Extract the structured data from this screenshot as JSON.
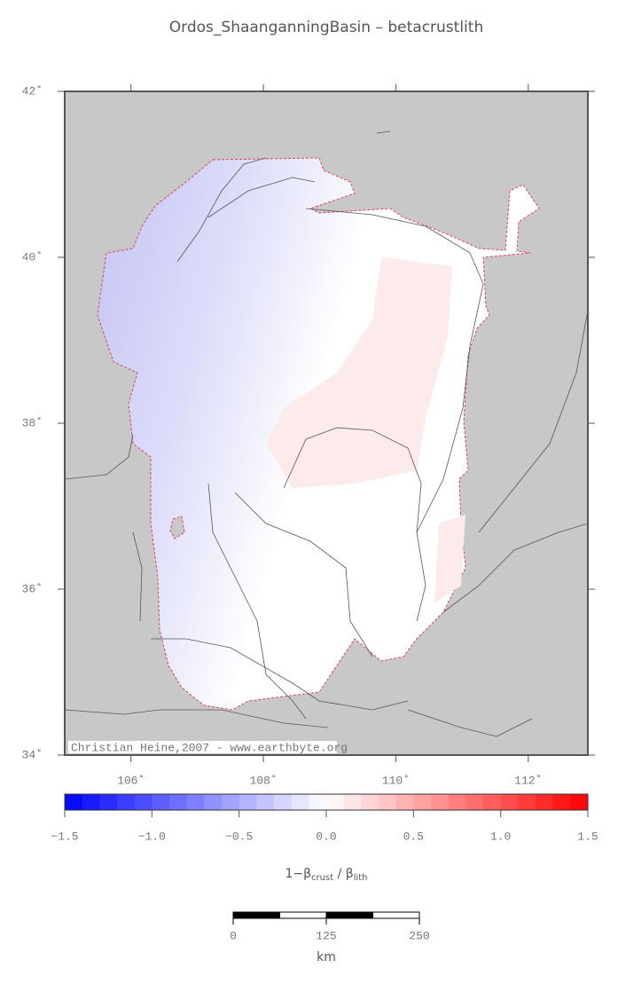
{
  "chart_data": {
    "type": "map",
    "title": "Ordos_ShaanganningBasin – betacrustlith",
    "xlim": [
      105,
      112.9
    ],
    "ylim": [
      34,
      42
    ],
    "xticks": [
      {
        "value": 106,
        "label": "106˚"
      },
      {
        "value": 108,
        "label": "108˚"
      },
      {
        "value": 110,
        "label": "110˚"
      },
      {
        "value": 112,
        "label": "112˚"
      }
    ],
    "yticks": [
      {
        "value": 34,
        "label": "34˚"
      },
      {
        "value": 36,
        "label": "36˚"
      },
      {
        "value": 38,
        "label": "38˚"
      },
      {
        "value": 40,
        "label": "40˚"
      },
      {
        "value": 42,
        "label": "42˚"
      }
    ],
    "credit": "Christian Heine,2007 - www.earthbyte.org",
    "colorbar": {
      "lim": [
        -1.5,
        1.5
      ],
      "step": 0.1,
      "colors": [
        "#0000ff",
        "#ffffff",
        "#ff0000"
      ],
      "ticks": [
        {
          "value": -1.5,
          "label": "−1.5"
        },
        {
          "value": -1.0,
          "label": "−1.0"
        },
        {
          "value": -0.5,
          "label": "−0.5"
        },
        {
          "value": 0,
          "label": "0.0"
        },
        0.5,
        {
          "value": 1.0,
          "label": "1.0"
        },
        1.5
      ],
      "label": {
        "prefix": "1−β",
        "sub1": "crust",
        "mid": " / β",
        "sub2": "lith"
      }
    },
    "scalebar": {
      "ticks": [
        0,
        125,
        250
      ],
      "unit": "km"
    }
  }
}
